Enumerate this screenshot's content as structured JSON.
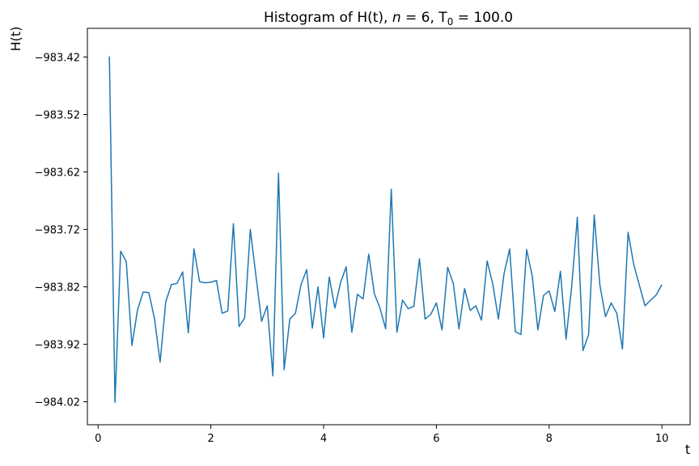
{
  "chart_data": {
    "type": "line",
    "title": "Histogram of H(t), ",
    "title_var": "n",
    "title_mid": " = 6, T",
    "title_sub": "0",
    "title_end": " = 100.0",
    "xlabel": "t",
    "ylabel": "H(t)",
    "xlim": [
      -0.19,
      10.5
    ],
    "ylim": [
      -984.06,
      -983.37
    ],
    "xticks": [
      0,
      2,
      4,
      6,
      8,
      10
    ],
    "xtick_labels": [
      "0",
      "2",
      "4",
      "6",
      "8",
      "10"
    ],
    "yticks": [
      -984.02,
      -983.92,
      -983.82,
      -983.72,
      -983.62,
      -983.52,
      -983.42
    ],
    "ytick_labels": [
      "−984.02",
      "−983.92",
      "−983.82",
      "−983.72",
      "−983.62",
      "−983.52",
      "−983.42"
    ],
    "grid": false,
    "color": "#1f77b4",
    "series": [
      {
        "x": [
          0.2,
          0.3,
          0.4,
          0.5,
          0.6,
          0.7,
          0.8,
          0.9,
          1.0,
          1.1,
          1.2,
          1.3,
          1.4,
          1.5,
          1.6,
          1.7,
          1.8,
          1.9,
          2.0,
          2.1,
          2.2,
          2.3,
          2.4,
          2.5,
          2.6,
          2.7,
          2.8,
          2.9,
          3.0,
          3.1,
          3.2,
          3.3,
          3.4,
          3.5,
          3.6,
          3.7,
          3.8,
          3.9,
          4.0,
          4.1,
          4.2,
          4.3,
          4.4,
          4.5,
          4.6,
          4.7,
          4.8,
          4.9,
          5.0,
          5.1,
          5.2,
          5.3,
          5.4,
          5.5,
          5.6,
          5.7,
          5.8,
          5.9,
          6.0,
          6.1,
          6.2,
          6.3,
          6.4,
          6.5,
          6.6,
          6.7,
          6.8,
          6.9,
          7.0,
          7.1,
          7.2,
          7.3,
          7.4,
          7.5,
          7.6,
          7.7,
          7.8,
          7.9,
          8.0,
          8.1,
          8.2,
          8.3,
          8.4,
          8.5,
          8.6,
          8.7,
          8.8,
          8.9,
          9.0,
          9.1,
          9.2,
          9.3,
          9.4,
          9.5,
          9.6,
          9.7,
          9.8,
          9.9,
          10.0
        ],
        "y": [
          -983.419,
          -984.021,
          -983.758,
          -983.776,
          -983.922,
          -983.86,
          -983.829,
          -983.83,
          -983.875,
          -983.951,
          -983.846,
          -983.816,
          -983.814,
          -983.794,
          -983.9,
          -983.754,
          -983.811,
          -983.813,
          -983.812,
          -983.809,
          -983.866,
          -983.862,
          -983.71,
          -983.889,
          -983.874,
          -983.72,
          -983.801,
          -983.88,
          -983.853,
          -983.975,
          -983.622,
          -983.964,
          -983.876,
          -983.866,
          -983.816,
          -983.79,
          -983.892,
          -983.82,
          -983.909,
          -983.803,
          -983.857,
          -983.813,
          -983.785,
          -983.899,
          -983.833,
          -983.841,
          -983.763,
          -983.832,
          -983.857,
          -983.893,
          -983.65,
          -983.899,
          -983.843,
          -983.858,
          -983.854,
          -983.771,
          -983.876,
          -983.868,
          -983.848,
          -983.895,
          -983.786,
          -983.814,
          -983.893,
          -983.823,
          -983.861,
          -983.853,
          -983.878,
          -983.775,
          -983.815,
          -983.876,
          -983.797,
          -983.754,
          -983.898,
          -983.903,
          -983.755,
          -983.801,
          -983.895,
          -983.835,
          -983.827,
          -983.863,
          -983.793,
          -983.911,
          -983.819,
          -983.699,
          -983.931,
          -983.903,
          -983.695,
          -983.817,
          -983.872,
          -983.848,
          -983.866,
          -983.928,
          -983.725,
          -983.781,
          -983.817,
          -983.853,
          -983.843,
          -983.834,
          -983.816
        ]
      }
    ]
  }
}
